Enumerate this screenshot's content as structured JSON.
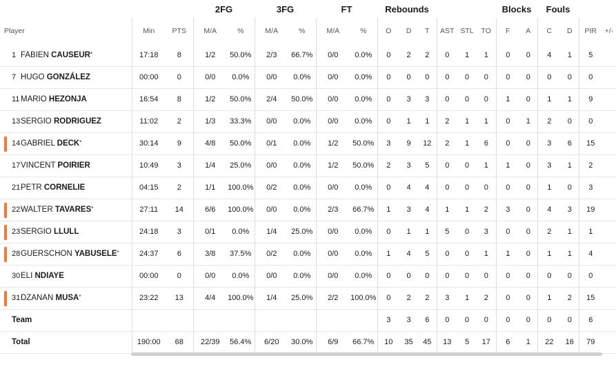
{
  "groups": {
    "g2fg": "2FG",
    "g3fg": "3FG",
    "gft": "FT",
    "greb": "Rebounds",
    "gblk": "Blocks",
    "gfls": "Fouls"
  },
  "headers": {
    "player": "Player",
    "min": "Min",
    "pts": "PTS",
    "fg2_ma": "M/A",
    "fg2_pct": "%",
    "fg3_ma": "M/A",
    "fg3_pct": "%",
    "ft_ma": "M/A",
    "ft_pct": "%",
    "o": "O",
    "d": "D",
    "t": "T",
    "ast": "AST",
    "stl": "STL",
    "to": "TO",
    "bf": "F",
    "ba": "A",
    "fc": "C",
    "fd": "D",
    "pir": "PIR",
    "pm": "+/-"
  },
  "players": [
    {
      "num": "1",
      "first": "FABIEN",
      "last": "CAUSEUR",
      "star": "*",
      "starter": false,
      "min": "17:18",
      "pts": "8",
      "fg2_ma": "1/2",
      "fg2_pct": "50.0%",
      "fg3_ma": "2/3",
      "fg3_pct": "66.7%",
      "ft_ma": "0/0",
      "ft_pct": "0.0%",
      "o": "0",
      "d": "2",
      "t": "2",
      "ast": "0",
      "stl": "1",
      "to": "1",
      "bf": "0",
      "ba": "0",
      "fc": "4",
      "fd": "1",
      "pir": "5"
    },
    {
      "num": "7",
      "first": "HUGO",
      "last": "GONZÁLEZ",
      "star": "",
      "starter": false,
      "min": "00:00",
      "pts": "0",
      "fg2_ma": "0/0",
      "fg2_pct": "0.0%",
      "fg3_ma": "0/0",
      "fg3_pct": "0.0%",
      "ft_ma": "0/0",
      "ft_pct": "0.0%",
      "o": "0",
      "d": "0",
      "t": "0",
      "ast": "0",
      "stl": "0",
      "to": "0",
      "bf": "0",
      "ba": "0",
      "fc": "0",
      "fd": "0",
      "pir": "0"
    },
    {
      "num": "11",
      "first": "MARIO",
      "last": "HEZONJA",
      "star": "",
      "starter": false,
      "min": "16:54",
      "pts": "8",
      "fg2_ma": "1/2",
      "fg2_pct": "50.0%",
      "fg3_ma": "2/4",
      "fg3_pct": "50.0%",
      "ft_ma": "0/0",
      "ft_pct": "0.0%",
      "o": "0",
      "d": "3",
      "t": "3",
      "ast": "0",
      "stl": "0",
      "to": "0",
      "bf": "1",
      "ba": "0",
      "fc": "1",
      "fd": "1",
      "pir": "9"
    },
    {
      "num": "13",
      "first": "SERGIO",
      "last": "RODRIGUEZ",
      "star": "",
      "starter": false,
      "min": "11:02",
      "pts": "2",
      "fg2_ma": "1/3",
      "fg2_pct": "33.3%",
      "fg3_ma": "0/0",
      "fg3_pct": "0.0%",
      "ft_ma": "0/0",
      "ft_pct": "0.0%",
      "o": "0",
      "d": "1",
      "t": "1",
      "ast": "2",
      "stl": "1",
      "to": "1",
      "bf": "0",
      "ba": "1",
      "fc": "2",
      "fd": "0",
      "pir": "0"
    },
    {
      "num": "14",
      "first": "GABRIEL",
      "last": "DECK",
      "star": "*",
      "starter": true,
      "min": "30:14",
      "pts": "9",
      "fg2_ma": "4/8",
      "fg2_pct": "50.0%",
      "fg3_ma": "0/1",
      "fg3_pct": "0.0%",
      "ft_ma": "1/2",
      "ft_pct": "50.0%",
      "o": "3",
      "d": "9",
      "t": "12",
      "ast": "2",
      "stl": "1",
      "to": "6",
      "bf": "0",
      "ba": "0",
      "fc": "3",
      "fd": "6",
      "pir": "15"
    },
    {
      "num": "17",
      "first": "VINCENT",
      "last": "POIRIER",
      "star": "",
      "starter": false,
      "min": "10:49",
      "pts": "3",
      "fg2_ma": "1/4",
      "fg2_pct": "25.0%",
      "fg3_ma": "0/0",
      "fg3_pct": "0.0%",
      "ft_ma": "1/2",
      "ft_pct": "50.0%",
      "o": "2",
      "d": "3",
      "t": "5",
      "ast": "0",
      "stl": "0",
      "to": "1",
      "bf": "1",
      "ba": "0",
      "fc": "3",
      "fd": "1",
      "pir": "2"
    },
    {
      "num": "21",
      "first": "PETR",
      "last": "CORNELIE",
      "star": "",
      "starter": false,
      "min": "04:15",
      "pts": "2",
      "fg2_ma": "1/1",
      "fg2_pct": "100.0%",
      "fg3_ma": "0/2",
      "fg3_pct": "0.0%",
      "ft_ma": "0/0",
      "ft_pct": "0.0%",
      "o": "0",
      "d": "4",
      "t": "4",
      "ast": "0",
      "stl": "0",
      "to": "0",
      "bf": "0",
      "ba": "0",
      "fc": "1",
      "fd": "0",
      "pir": "3"
    },
    {
      "num": "22",
      "first": "WALTER",
      "last": "TAVARES",
      "star": "*",
      "starter": true,
      "min": "27:11",
      "pts": "14",
      "fg2_ma": "6/6",
      "fg2_pct": "100.0%",
      "fg3_ma": "0/0",
      "fg3_pct": "0.0%",
      "ft_ma": "2/3",
      "ft_pct": "66.7%",
      "o": "1",
      "d": "3",
      "t": "4",
      "ast": "1",
      "stl": "1",
      "to": "2",
      "bf": "3",
      "ba": "0",
      "fc": "4",
      "fd": "3",
      "pir": "19"
    },
    {
      "num": "23",
      "first": "SERGIO",
      "last": "LLULL",
      "star": "",
      "starter": true,
      "min": "24:18",
      "pts": "3",
      "fg2_ma": "0/1",
      "fg2_pct": "0.0%",
      "fg3_ma": "1/4",
      "fg3_pct": "25.0%",
      "ft_ma": "0/0",
      "ft_pct": "0.0%",
      "o": "0",
      "d": "1",
      "t": "1",
      "ast": "5",
      "stl": "0",
      "to": "3",
      "bf": "0",
      "ba": "0",
      "fc": "2",
      "fd": "1",
      "pir": "1"
    },
    {
      "num": "28",
      "first": "GUERSCHON",
      "last": "YABUSELE",
      "star": "*",
      "starter": true,
      "min": "24:37",
      "pts": "6",
      "fg2_ma": "3/8",
      "fg2_pct": "37.5%",
      "fg3_ma": "0/2",
      "fg3_pct": "0.0%",
      "ft_ma": "0/0",
      "ft_pct": "0.0%",
      "o": "1",
      "d": "4",
      "t": "5",
      "ast": "0",
      "stl": "0",
      "to": "1",
      "bf": "1",
      "ba": "0",
      "fc": "1",
      "fd": "1",
      "pir": "4"
    },
    {
      "num": "30",
      "first": "ELI",
      "last": "NDIAYE",
      "star": "",
      "starter": false,
      "min": "00:00",
      "pts": "0",
      "fg2_ma": "0/0",
      "fg2_pct": "0.0%",
      "fg3_ma": "0/0",
      "fg3_pct": "0.0%",
      "ft_ma": "0/0",
      "ft_pct": "0.0%",
      "o": "0",
      "d": "0",
      "t": "0",
      "ast": "0",
      "stl": "0",
      "to": "0",
      "bf": "0",
      "ba": "0",
      "fc": "0",
      "fd": "0",
      "pir": "0"
    },
    {
      "num": "31",
      "first": "DZANAN",
      "last": "MUSA",
      "star": "*",
      "starter": true,
      "min": "23:22",
      "pts": "13",
      "fg2_ma": "4/4",
      "fg2_pct": "100.0%",
      "fg3_ma": "1/4",
      "fg3_pct": "25.0%",
      "ft_ma": "2/2",
      "ft_pct": "100.0%",
      "o": "0",
      "d": "2",
      "t": "2",
      "ast": "3",
      "stl": "1",
      "to": "2",
      "bf": "0",
      "ba": "0",
      "fc": "1",
      "fd": "2",
      "pir": "15"
    }
  ],
  "team": {
    "label": "Team",
    "o": "3",
    "d": "3",
    "t": "6",
    "ast": "0",
    "stl": "0",
    "to": "0",
    "bf": "0",
    "ba": "0",
    "fc": "0",
    "fd": "0",
    "pir": "6"
  },
  "total": {
    "label": "Total",
    "min": "190:00",
    "pts": "68",
    "fg2_ma": "22/39",
    "fg2_pct": "56.4%",
    "fg3_ma": "6/20",
    "fg3_pct": "30.0%",
    "ft_ma": "6/9",
    "ft_pct": "66.7%",
    "o": "10",
    "d": "35",
    "t": "45",
    "ast": "13",
    "stl": "5",
    "to": "17",
    "bf": "6",
    "ba": "1",
    "fc": "22",
    "fd": "16",
    "pir": "79"
  },
  "colors": {
    "starter_marker": "#f07a3c"
  }
}
